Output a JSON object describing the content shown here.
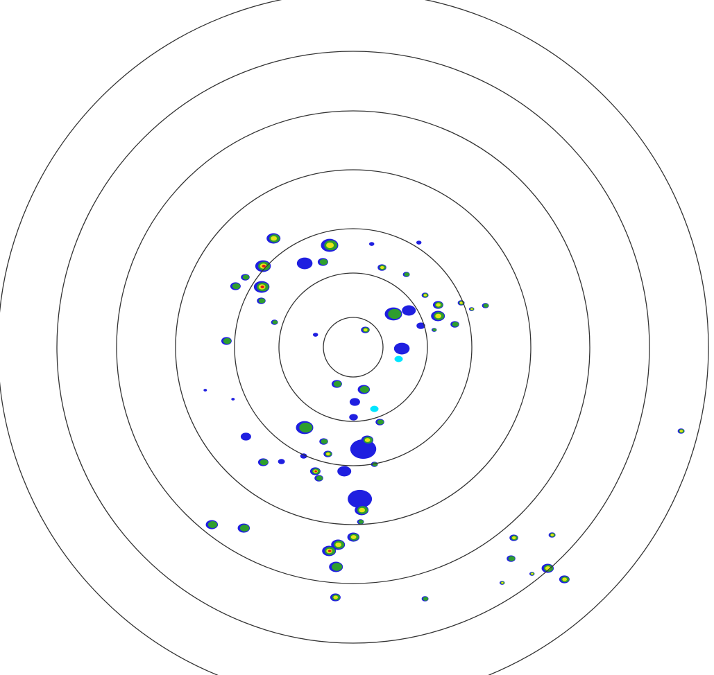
{
  "radar": {
    "ring_count": 7,
    "ring_color": "#333333",
    "background_color": "#ffffff",
    "echo_colors": {
      "weak": "#00e5ff",
      "light": "#1f1fe0",
      "moderate": "#2e9e2e",
      "heavy": "#e5e51a",
      "intense": "#e01a1a"
    }
  }
}
